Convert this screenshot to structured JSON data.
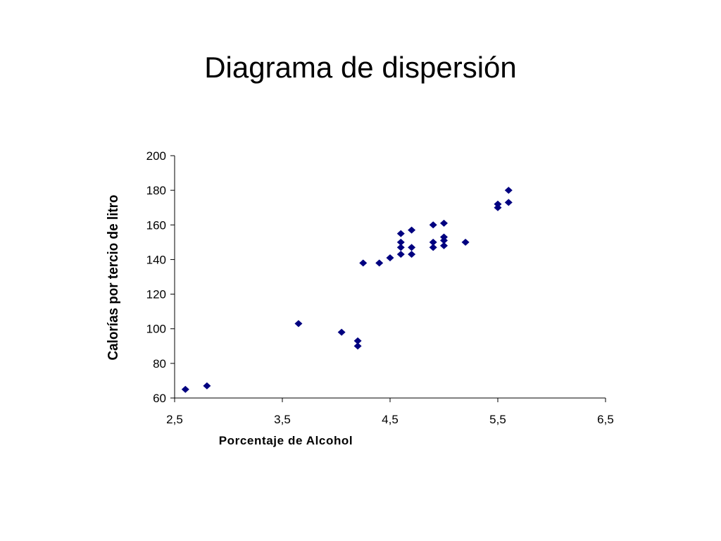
{
  "slide": {
    "title": "Diagrama de dispersión"
  },
  "chart_data": {
    "type": "scatter",
    "xlabel": "Porcentaje de Alcohol",
    "ylabel": "Calorías por tercio de litro",
    "xlim": [
      2.5,
      6.5
    ],
    "ylim": [
      60,
      200
    ],
    "x_ticks": [
      2.5,
      3.5,
      4.5,
      5.5,
      6.5
    ],
    "x_tick_labels": [
      "2,5",
      "3,5",
      "4,5",
      "5,5",
      "6,5"
    ],
    "y_ticks": [
      60,
      80,
      100,
      120,
      140,
      160,
      180,
      200
    ],
    "y_tick_labels": [
      "60",
      "80",
      "100",
      "120",
      "140",
      "160",
      "180",
      "200"
    ],
    "grid": false,
    "legend": "none",
    "marker": "diamond",
    "marker_color": "#000080",
    "points": [
      {
        "x": 2.6,
        "y": 65
      },
      {
        "x": 2.8,
        "y": 67
      },
      {
        "x": 3.65,
        "y": 103
      },
      {
        "x": 4.05,
        "y": 98
      },
      {
        "x": 4.2,
        "y": 93
      },
      {
        "x": 4.2,
        "y": 90
      },
      {
        "x": 4.25,
        "y": 138
      },
      {
        "x": 4.4,
        "y": 138
      },
      {
        "x": 4.5,
        "y": 141
      },
      {
        "x": 4.6,
        "y": 155
      },
      {
        "x": 4.6,
        "y": 150
      },
      {
        "x": 4.6,
        "y": 147
      },
      {
        "x": 4.6,
        "y": 143
      },
      {
        "x": 4.7,
        "y": 157
      },
      {
        "x": 4.7,
        "y": 147
      },
      {
        "x": 4.7,
        "y": 143
      },
      {
        "x": 4.9,
        "y": 160
      },
      {
        "x": 4.9,
        "y": 150
      },
      {
        "x": 4.9,
        "y": 147
      },
      {
        "x": 5.0,
        "y": 161
      },
      {
        "x": 5.0,
        "y": 153
      },
      {
        "x": 5.0,
        "y": 151
      },
      {
        "x": 5.0,
        "y": 148
      },
      {
        "x": 5.2,
        "y": 150
      },
      {
        "x": 5.5,
        "y": 172
      },
      {
        "x": 5.5,
        "y": 170
      },
      {
        "x": 5.6,
        "y": 180
      },
      {
        "x": 5.6,
        "y": 173
      }
    ]
  }
}
